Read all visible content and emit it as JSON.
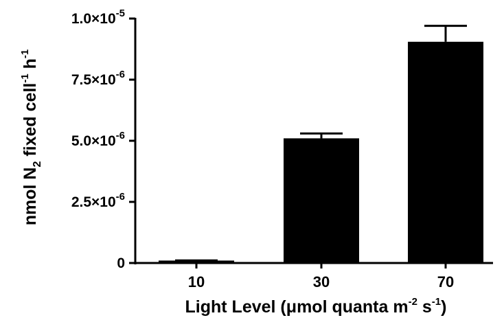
{
  "chart_data": {
    "type": "bar",
    "categories": [
      "10",
      "30",
      "70"
    ],
    "values": [
      1e-07,
      5.1e-06,
      9.05e-06
    ],
    "errors": [
      5e-09,
      2e-07,
      6.5e-07
    ],
    "ylim": [
      0,
      1e-05
    ],
    "yticks": [
      {
        "value": 0,
        "label": "0"
      },
      {
        "value": 2.5e-06,
        "label": "2.5×10",
        "exp": "-6"
      },
      {
        "value": 5e-06,
        "label": "5.0×10",
        "exp": "-6"
      },
      {
        "value": 7.5e-06,
        "label": "7.5×10",
        "exp": "-6"
      },
      {
        "value": 1e-05,
        "label": "1.0×10",
        "exp": "-5"
      }
    ],
    "ylabel": {
      "p1": "nmol N",
      "sub": "2",
      "p2": " fixed cell",
      "sup1": "-1",
      "p3": " h",
      "sup2": "-1"
    },
    "xlabel": {
      "p1": "Light Level (",
      "mu": "μ",
      "p2": "mol quanta m",
      "sup1": "-2",
      "p3": " s",
      "sup2": "-1",
      "p4": ")"
    },
    "bar_color": "#000000",
    "grid": false
  }
}
